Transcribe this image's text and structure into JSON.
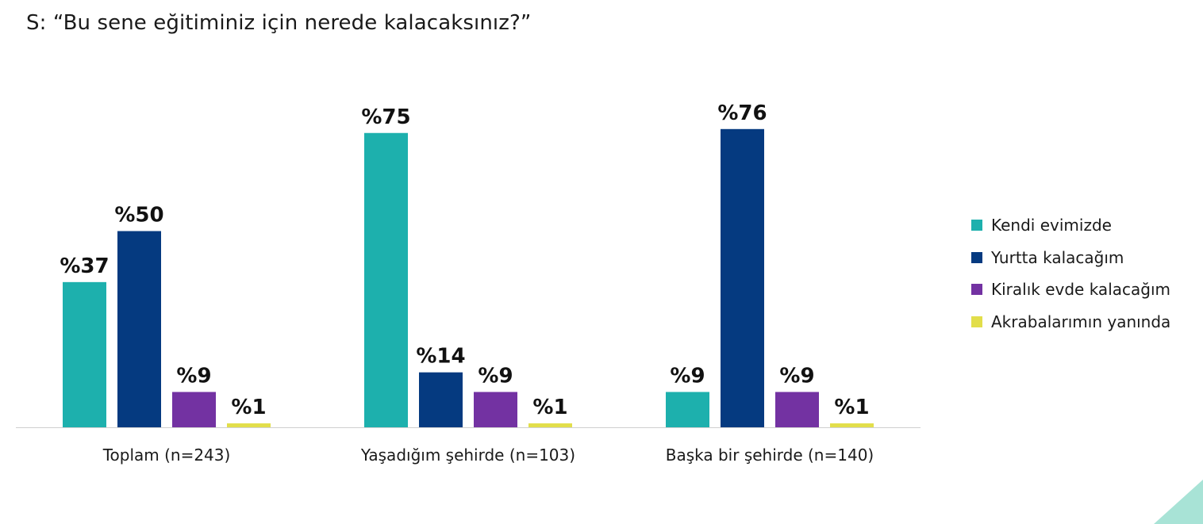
{
  "question": "S: “Bu sene eğitiminiz için nerede kalacaksınız?”",
  "chart_data": {
    "type": "bar",
    "categories": [
      "Toplam (n=243)",
      "Yaşadığım şehirde (n=103)",
      "Başka bir şehirde (n=140)"
    ],
    "series": [
      {
        "name": "Kendi evimizde",
        "color": "#1db0ad",
        "values": [
          37,
          75,
          9
        ],
        "labels": [
          "%37",
          "%75",
          "%9"
        ]
      },
      {
        "name": "Yurtta kalacağım",
        "color": "#053a80",
        "values": [
          50,
          14,
          76
        ],
        "labels": [
          "%50",
          "%14",
          "%76"
        ]
      },
      {
        "name": "Kiralık evde kalacağım",
        "color": "#7332a2",
        "values": [
          9,
          9,
          9
        ],
        "labels": [
          "%9",
          "%9",
          "%9"
        ]
      },
      {
        "name": "Akrabalarımın yanında",
        "color": "#e2de4a",
        "values": [
          1,
          1,
          1
        ],
        "labels": [
          "%1",
          "%1",
          "%1"
        ]
      }
    ],
    "ylim": [
      0,
      76
    ],
    "legend_position": "right",
    "grid": false
  },
  "decor": {
    "corner_color": "#a8e3d6"
  }
}
